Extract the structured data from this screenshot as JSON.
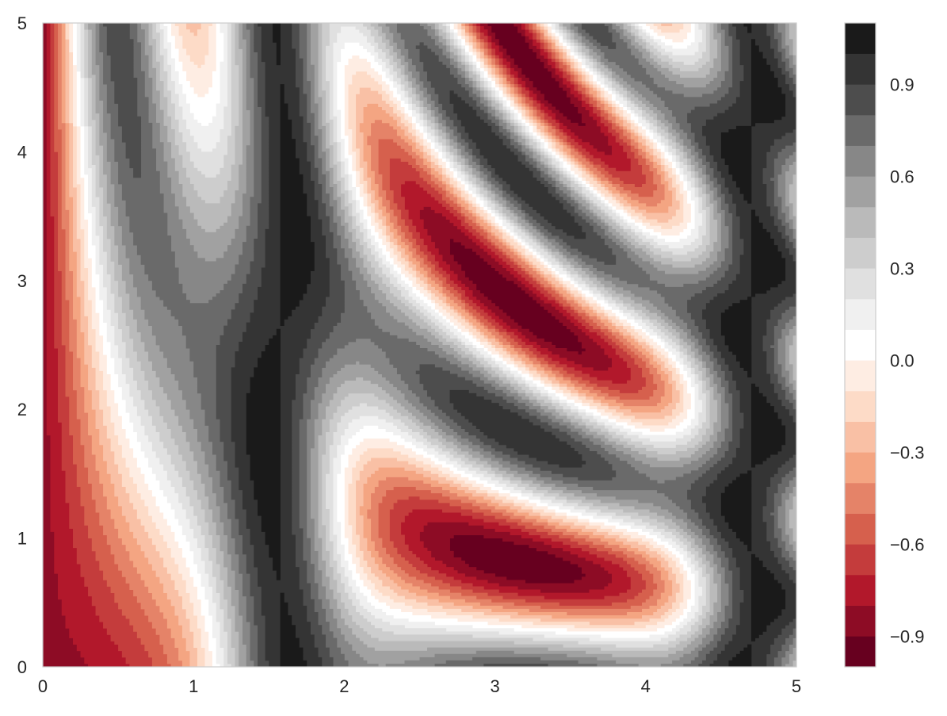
{
  "chart_data": {
    "type": "heatmap",
    "subtype": "filled-contour",
    "function": "z = sin(x)^10 + cos(10 + y*x) * cos(x)",
    "title": "",
    "xlabel": "",
    "ylabel": "",
    "xlim": [
      0,
      5
    ],
    "ylim": [
      0,
      5
    ],
    "x_ticks": [
      0,
      1,
      2,
      3,
      4,
      5
    ],
    "y_ticks": [
      0,
      1,
      2,
      3,
      4,
      5
    ],
    "x_tick_labels": [
      "0",
      "1",
      "2",
      "3",
      "4",
      "5"
    ],
    "y_tick_labels": [
      "0",
      "1",
      "2",
      "3",
      4,
      "5"
    ],
    "grid": false,
    "colormap": "RdGy",
    "colorbar": {
      "vmin": -1.0,
      "vmax": 1.1,
      "levels": [
        -1.0,
        -0.9,
        -0.8,
        -0.7,
        -0.6,
        -0.5,
        -0.4,
        -0.3,
        -0.2,
        -0.1,
        0.0,
        0.1,
        0.2,
        0.3,
        0.4,
        0.5,
        0.6,
        0.7,
        0.8,
        0.9,
        1.0,
        1.1
      ],
      "tick_values": [
        -0.9,
        -0.6,
        -0.3,
        0.0,
        0.3,
        0.6,
        0.9
      ],
      "tick_labels": [
        "−0.9",
        "−0.6",
        "−0.3",
        "0.0",
        "0.3",
        "0.6",
        "0.9"
      ],
      "placement": "right"
    }
  },
  "colors": {
    "RdGy": [
      "#67001f",
      "#b2182b",
      "#d6604d",
      "#f4a582",
      "#fddbc7",
      "#ffffff",
      "#e0e0e0",
      "#bababa",
      "#878787",
      "#4d4d4d",
      "#1a1a1a"
    ],
    "axes_edge": "#cccccc",
    "text": "#262626"
  }
}
